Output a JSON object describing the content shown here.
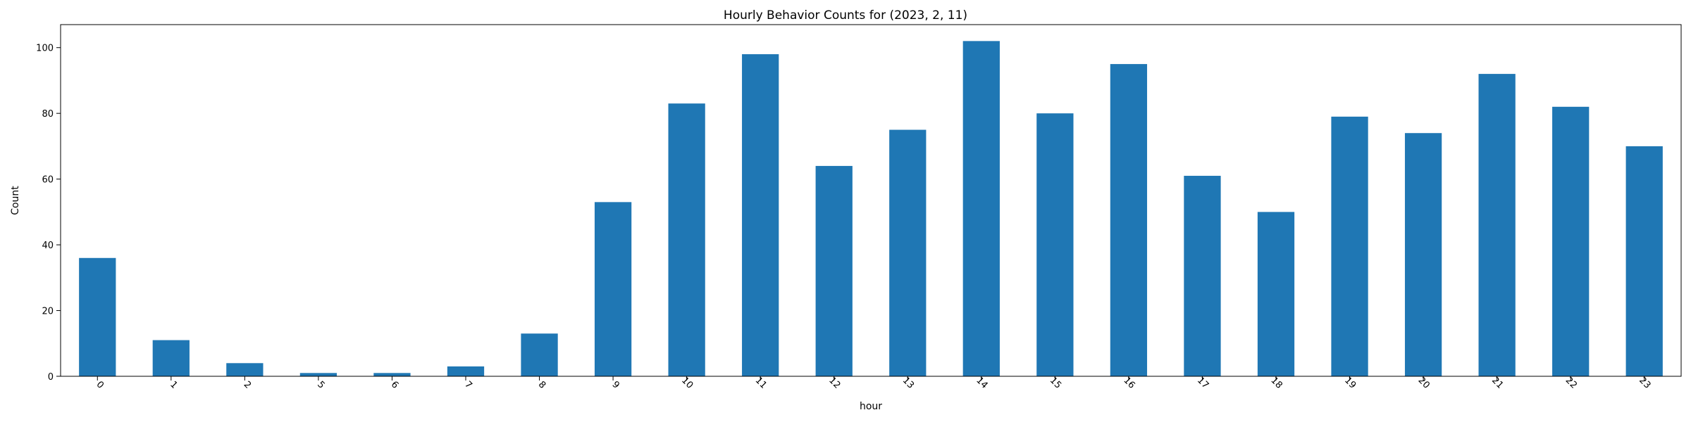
{
  "chart_data": {
    "type": "bar",
    "title": "Hourly Behavior Counts for (2023, 2, 11)",
    "xlabel": "hour",
    "ylabel": "Count",
    "categories": [
      "0",
      "1",
      "2",
      "5",
      "6",
      "7",
      "8",
      "9",
      "10",
      "11",
      "12",
      "13",
      "14",
      "15",
      "16",
      "17",
      "18",
      "19",
      "20",
      "21",
      "22",
      "23"
    ],
    "values": [
      36,
      11,
      4,
      1,
      1,
      3,
      13,
      53,
      83,
      98,
      64,
      75,
      102,
      80,
      95,
      61,
      50,
      79,
      74,
      92,
      82,
      70
    ],
    "ylim": [
      0,
      107
    ],
    "yticks": [
      0,
      20,
      40,
      60,
      80,
      100
    ],
    "grid": false,
    "legend": "none",
    "bar_color": "#1f77b4",
    "xtick_rotation": 45
  }
}
